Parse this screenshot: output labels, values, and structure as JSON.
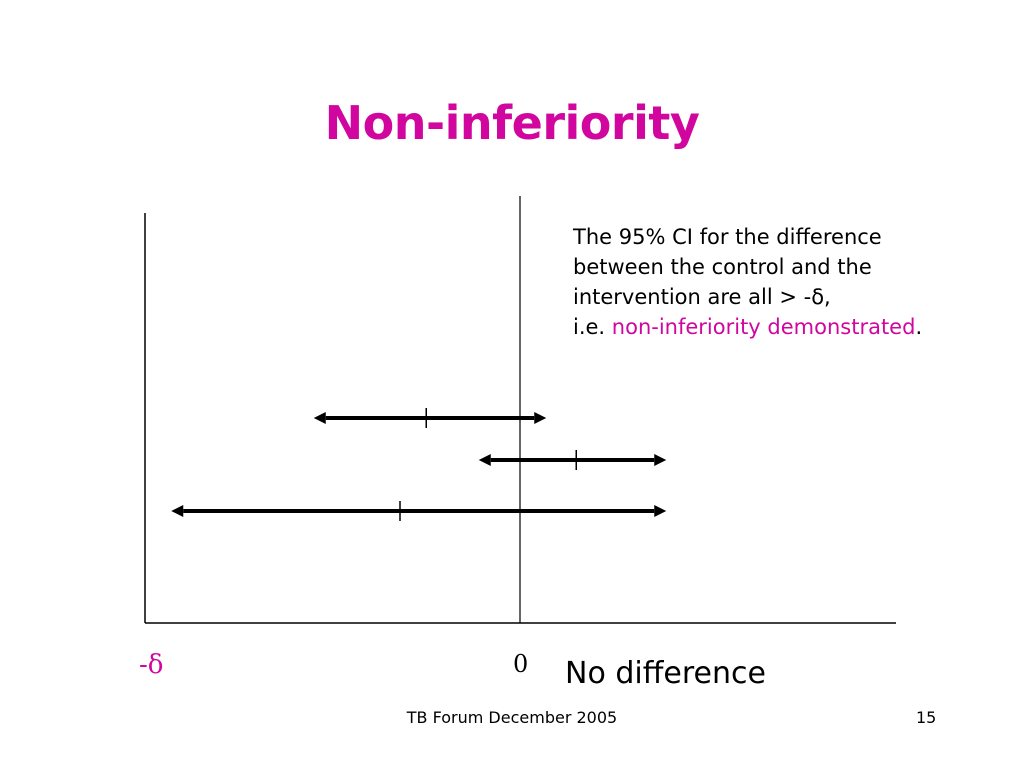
{
  "slide": {
    "title": "Non-inferiority",
    "note": {
      "line1": "The 95% CI for the difference",
      "line2": "between the control and the",
      "line3": "intervention are all > -δ,",
      "line4_prefix": "i.e. ",
      "line4_highlight": "non-inferiority demonstrated",
      "line4_suffix": "."
    },
    "axis_labels": {
      "minus_delta": "-δ",
      "zero": "0",
      "no_difference": "No difference"
    },
    "footer": "TB Forum December 2005",
    "page_number": "15"
  },
  "colors": {
    "accent": "#d0069e",
    "line": "#000000"
  },
  "intervals": [
    {
      "lower": -0.55,
      "point": -0.25,
      "upper": 0.07
    },
    {
      "lower": -0.11,
      "point": 0.15,
      "upper": 0.39
    },
    {
      "lower": -0.93,
      "point": -0.32,
      "upper": 0.39
    }
  ]
}
